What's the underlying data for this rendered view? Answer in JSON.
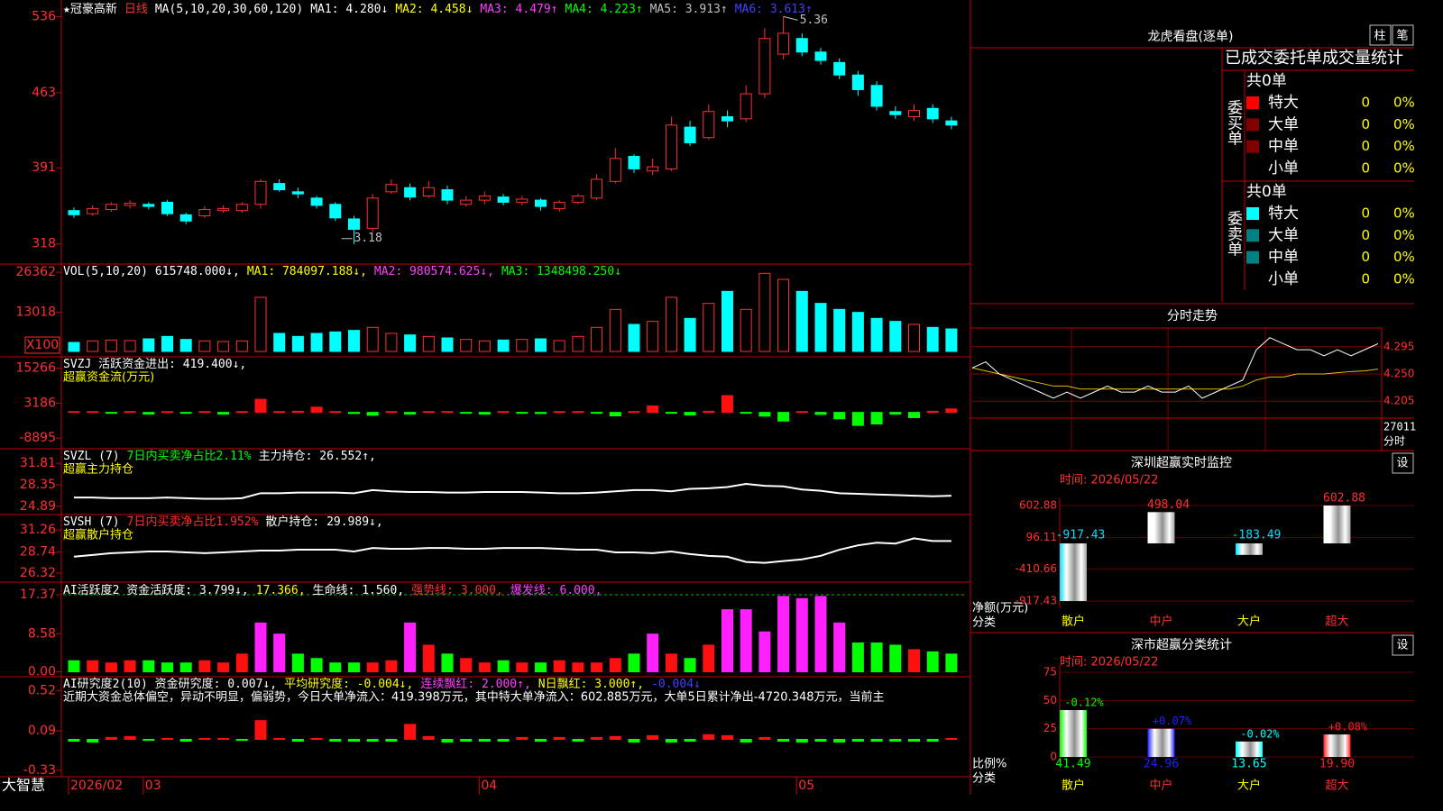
{
  "main": {
    "type": "candle",
    "ylim": [
      310,
      545
    ],
    "yticks": [
      318,
      391,
      463,
      536
    ],
    "legend": [
      {
        "text": "★冠豪高新",
        "color": "#ffffff"
      },
      {
        "text": "日线",
        "color": "#ff3030"
      },
      {
        "text": "MA(5,10,20,30,60,120)",
        "color": "#ffffff"
      },
      {
        "text": "MA1: 4.280↓",
        "color": "#ffffff"
      },
      {
        "text": "MA2: 4.458↓",
        "color": "#ffff00"
      },
      {
        "text": "MA3: 4.479↑",
        "color": "#ff40ff"
      },
      {
        "text": "MA4: 4.223↑",
        "color": "#00ff00"
      },
      {
        "text": "MA5: 3.913↑",
        "color": "#c0c0c0"
      },
      {
        "text": "MA6: 3.613↑",
        "color": "#4040ff"
      }
    ],
    "high_label": "5.36",
    "low_label": "3.18",
    "up_color": "#ff3030",
    "down_color": "#00ffff",
    "categories": [
      "2026/02",
      null,
      null,
      null,
      "03",
      null,
      null,
      null,
      null,
      null,
      null,
      null,
      null,
      null,
      null,
      null,
      null,
      null,
      null,
      null,
      null,
      null,
      "04",
      null,
      null,
      null,
      null,
      null,
      null,
      null,
      null,
      null,
      null,
      null,
      null,
      null,
      null,
      null,
      null,
      "05",
      null,
      null,
      null,
      null,
      null,
      null,
      null,
      null
    ],
    "candles": [
      [
        350,
        346,
        353,
        343
      ],
      [
        347,
        352,
        355,
        345
      ],
      [
        351,
        356,
        358,
        349
      ],
      [
        355,
        357,
        360,
        352
      ],
      [
        356,
        354,
        358,
        351
      ],
      [
        358,
        347,
        360,
        345
      ],
      [
        346,
        340,
        348,
        337
      ],
      [
        345,
        351,
        354,
        343
      ],
      [
        350,
        352,
        355,
        348
      ],
      [
        350,
        356,
        358,
        348
      ],
      [
        356,
        378,
        380,
        352
      ],
      [
        376,
        370,
        380,
        368
      ],
      [
        368,
        366,
        372,
        362
      ],
      [
        362,
        355,
        364,
        352
      ],
      [
        356,
        343,
        358,
        340
      ],
      [
        342,
        332,
        345,
        318
      ],
      [
        333,
        362,
        366,
        330
      ],
      [
        368,
        375,
        380,
        366
      ],
      [
        372,
        363,
        376,
        360
      ],
      [
        364,
        372,
        378,
        362
      ],
      [
        370,
        360,
        374,
        356
      ],
      [
        356,
        360,
        364,
        354
      ],
      [
        360,
        364,
        368,
        356
      ],
      [
        363,
        358,
        366,
        355
      ],
      [
        358,
        361,
        364,
        355
      ],
      [
        360,
        354,
        362,
        350
      ],
      [
        352,
        358,
        360,
        349
      ],
      [
        358,
        364,
        366,
        356
      ],
      [
        362,
        380,
        385,
        360
      ],
      [
        378,
        400,
        410,
        376
      ],
      [
        402,
        390,
        404,
        386
      ],
      [
        388,
        392,
        400,
        384
      ],
      [
        390,
        432,
        440,
        388
      ],
      [
        430,
        415,
        436,
        412
      ],
      [
        420,
        445,
        452,
        418
      ],
      [
        440,
        436,
        446,
        430
      ],
      [
        438,
        462,
        470,
        435
      ],
      [
        462,
        515,
        525,
        458
      ],
      [
        500,
        520,
        536,
        495
      ],
      [
        515,
        502,
        520,
        498
      ],
      [
        502,
        494,
        506,
        490
      ],
      [
        492,
        480,
        496,
        476
      ],
      [
        480,
        466,
        484,
        460
      ],
      [
        470,
        450,
        474,
        446
      ],
      [
        445,
        442,
        450,
        438
      ],
      [
        440,
        446,
        452,
        436
      ],
      [
        448,
        438,
        452,
        434
      ],
      [
        436,
        432,
        440,
        428
      ]
    ]
  },
  "volume": {
    "type": "bar",
    "ylim": [
      0,
      27000
    ],
    "yticks": [
      13018,
      26362
    ],
    "unit_label": "X100",
    "legend": [
      {
        "text": "VOL(5,10,20)",
        "color": "#ffffff"
      },
      {
        "text": "615748.000↓,",
        "color": "#ffffff"
      },
      {
        "text": "MA1: 784097.188↓,",
        "color": "#ffff00"
      },
      {
        "text": "MA2: 980574.625↓,",
        "color": "#ff40ff"
      },
      {
        "text": "MA3: 1348498.250↓",
        "color": "#00ff00"
      }
    ],
    "values": [
      3000,
      3500,
      3800,
      3600,
      4200,
      5000,
      4000,
      3500,
      3300,
      3500,
      18000,
      6000,
      5000,
      6000,
      6500,
      7000,
      8000,
      6000,
      5500,
      5000,
      4500,
      4000,
      3500,
      3800,
      4000,
      4200,
      3600,
      5000,
      8000,
      14000,
      9000,
      10000,
      18000,
      11000,
      16000,
      20000,
      14000,
      26000,
      24000,
      20000,
      16000,
      14000,
      13000,
      11000,
      10000,
      9000,
      8000,
      7500
    ]
  },
  "svzj": {
    "type": "bar0",
    "ylim": [
      -11000,
      17000
    ],
    "yticks": [
      15266,
      3186,
      -8895
    ],
    "legend": [
      {
        "text": "SVZJ  活跃资金进出: 419.400↓,",
        "color": "#ffffff"
      }
    ],
    "subtitle": "超赢资金流(万元)",
    "values": [
      300,
      300,
      -300,
      300,
      -600,
      300,
      -300,
      300,
      -600,
      300,
      4500,
      300,
      400,
      1800,
      300,
      -400,
      -1000,
      300,
      -600,
      300,
      300,
      -300,
      -600,
      300,
      -300,
      -400,
      300,
      300,
      -300,
      -1200,
      300,
      2200,
      -300,
      -900,
      400,
      5800,
      -300,
      -1300,
      -3000,
      300,
      -700,
      -2200,
      -4500,
      -4000,
      -600,
      -1800,
      400,
      1200
    ]
  },
  "svzl": {
    "type": "line",
    "ylim": [
      24,
      33
    ],
    "yticks": [
      31.81,
      28.35,
      24.89
    ],
    "legend": [
      {
        "text": "SVZL (7)",
        "color": "#ffffff"
      },
      {
        "text": "7日内买卖净占比2.11%",
        "color": "#00ff00"
      },
      {
        "text": "主力持仓: 26.552↑,",
        "color": "#ffffff"
      }
    ],
    "subtitle": "超赢主力持仓",
    "values": [
      26.3,
      26.3,
      26.2,
      26.2,
      26.2,
      26.3,
      26.2,
      26.1,
      26.1,
      26.2,
      27.0,
      27.0,
      27.1,
      27.1,
      27.1,
      27.0,
      27.5,
      27.3,
      27.2,
      27.2,
      27.1,
      27.1,
      27.2,
      27.2,
      27.2,
      27.1,
      27.0,
      27.0,
      27.1,
      27.3,
      27.5,
      27.5,
      27.3,
      27.7,
      27.8,
      28.0,
      28.5,
      28.2,
      28.1,
      27.6,
      27.4,
      27.0,
      26.9,
      26.8,
      26.7,
      26.6,
      26.5,
      26.6
    ]
  },
  "svsh": {
    "type": "line",
    "ylim": [
      25.5,
      32.3
    ],
    "yticks": [
      31.26,
      28.74,
      26.32
    ],
    "legend": [
      {
        "text": "SVSH (7)",
        "color": "#ffffff"
      },
      {
        "text": "7日内买卖净占比1.952%",
        "color": "#ff3030"
      },
      {
        "text": "散户持仓: 29.989↓,",
        "color": "#ffffff"
      }
    ],
    "subtitle": "超赢散户持仓",
    "values": [
      28.2,
      28.4,
      28.6,
      28.7,
      28.8,
      28.8,
      28.7,
      28.6,
      28.7,
      28.8,
      28.9,
      28.9,
      29.0,
      29.0,
      29.0,
      28.8,
      29.2,
      29.1,
      29.1,
      29.2,
      29.2,
      29.1,
      29.1,
      29.2,
      29.2,
      29.2,
      29.1,
      29.0,
      29.0,
      28.7,
      28.7,
      28.6,
      28.8,
      28.5,
      28.3,
      28.2,
      27.6,
      27.5,
      27.7,
      27.9,
      28.3,
      29.0,
      29.5,
      29.8,
      29.7,
      30.3,
      30.0,
      30.0
    ]
  },
  "ai": {
    "type": "bar0",
    "ylim": [
      -0.5,
      19
    ],
    "yticks": [
      17.37,
      8.58,
      {
        "value": 0,
        "label": "0.00"
      }
    ],
    "grid_dashed": true,
    "legend": [
      {
        "text": "AI活跃度2 资金活跃度: 3.799↓,",
        "color": "#ffffff"
      },
      {
        "text": "17.366,",
        "color": "#ffff00"
      },
      {
        "text": "生命线: 1.560,",
        "color": "#ffffff"
      },
      {
        "text": "强势线: 3.000,",
        "color": "#ff3030"
      },
      {
        "text": "爆发线: 6.000,",
        "color": "#ff40ff"
      }
    ],
    "values": [
      2.5,
      2.5,
      2,
      2.5,
      2.5,
      2,
      2,
      2.5,
      2,
      4,
      11,
      8.5,
      4,
      3,
      2,
      2,
      2,
      2.5,
      11,
      6,
      4,
      3,
      2,
      2.5,
      2,
      2,
      2.5,
      2,
      2,
      3,
      4,
      8.5,
      4,
      3,
      6,
      14,
      14,
      9,
      17,
      16.5,
      17,
      11,
      6.5,
      6.5,
      6,
      5,
      4.5,
      4
    ]
  },
  "research": {
    "type": "bar0",
    "ylim": [
      -0.36,
      0.6
    ],
    "yticks": [
      0.52,
      0.09,
      -0.33
    ],
    "legend": [
      {
        "text": "AI研究度2(10) 资金研究度: 0.007↓,",
        "color": "#ffffff"
      },
      {
        "text": "平均研究度: -0.004↓,",
        "color": "#ffff00"
      },
      {
        "text": "连续飘红: 2.000↑,",
        "color": "#ff40ff"
      },
      {
        "text": "N日飘红: 3.000↑,",
        "color": "#ffff00"
      },
      {
        "text": "-0.004↓",
        "color": "#4040ff"
      }
    ],
    "subtitle": "近期大资金总体偏空，异动不明显，偏弱势，今日大单净流入：419.398万元，其中特大单净流入：602.885万元，大单5日累计净出-4720.348万元，当前主",
    "values": [
      -0.02,
      -0.03,
      0.02,
      0.03,
      -0.01,
      0.01,
      -0.02,
      0.01,
      0.01,
      -0.01,
      0.2,
      0.01,
      -0.02,
      0.01,
      -0.02,
      -0.02,
      -0.02,
      -0.02,
      0.16,
      0.03,
      -0.03,
      -0.02,
      -0.02,
      -0.02,
      0.02,
      -0.02,
      0.02,
      -0.02,
      0.02,
      0.03,
      -0.03,
      0.04,
      -0.03,
      -0.02,
      0.05,
      0.04,
      -0.03,
      0.02,
      -0.02,
      -0.03,
      -0.02,
      -0.03,
      -0.02,
      -0.02,
      -0.02,
      -0.02,
      -0.02,
      0.01
    ]
  },
  "footer": {
    "brand": "大智慧"
  },
  "order_stats": {
    "title": "龙虎看盘(逐单)",
    "buttons": [
      "柱",
      "笔"
    ],
    "header": "已成交委托单成交量统计",
    "buy": {
      "label": "委买单",
      "total": "共0单",
      "rows": [
        {
          "name": "特大",
          "color": "#ff0000",
          "count": 0,
          "pct": "0%"
        },
        {
          "name": "大单",
          "color": "#800000",
          "count": 0,
          "pct": "0%"
        },
        {
          "name": "中单",
          "color": "#800000",
          "count": 0,
          "pct": "0%"
        },
        {
          "name": "小单",
          "count": 0,
          "pct": "0%"
        }
      ]
    },
    "sell": {
      "label": "委卖单",
      "total": "共0单",
      "rows": [
        {
          "name": "特大",
          "color": "#00ffff",
          "count": 0,
          "pct": "0%"
        },
        {
          "name": "大单",
          "color": "#008080",
          "count": 0,
          "pct": "0%"
        },
        {
          "name": "中单",
          "color": "#008080",
          "count": 0,
          "pct": "0%"
        },
        {
          "name": "小单",
          "count": 0,
          "pct": "0%"
        }
      ]
    }
  },
  "intraday": {
    "type": "line",
    "title": "分时走势",
    "ylim": [
      4.18,
      4.32
    ],
    "yticks": [
      4.295,
      {
        "value": 4.25,
        "label": "4.250"
      },
      4.205
    ],
    "volume_label": "27011",
    "volume_unit": "分时",
    "price": [
      4.26,
      4.27,
      4.25,
      4.24,
      4.23,
      4.22,
      4.21,
      4.22,
      4.21,
      4.22,
      4.23,
      4.22,
      4.22,
      4.23,
      4.22,
      4.22,
      4.23,
      4.21,
      4.22,
      4.23,
      4.24,
      4.29,
      4.31,
      4.3,
      4.29,
      4.29,
      4.28,
      4.29,
      4.28,
      4.29,
      4.3
    ],
    "average": [
      4.26,
      4.255,
      4.25,
      4.245,
      4.24,
      4.235,
      4.23,
      4.23,
      4.225,
      4.225,
      4.225,
      4.225,
      4.225,
      4.225,
      4.225,
      4.225,
      4.225,
      4.225,
      4.225,
      4.225,
      4.23,
      4.24,
      4.245,
      4.245,
      4.25,
      4.25,
      4.25,
      4.252,
      4.254,
      4.255,
      4.258
    ]
  },
  "monitor": {
    "type": "bar",
    "title": "深圳超赢实时监控",
    "button": "设",
    "time": "时间: 2026/05/22",
    "y_label": "净额(万元)",
    "x_label": "分类",
    "categories": [
      "散户",
      "中户",
      "大户",
      "超大"
    ],
    "values": [
      -917.43,
      498.04,
      -183.49,
      602.88
    ],
    "ylim": [
      -917.43,
      602.88
    ],
    "yticks": [
      602.88,
      96.11,
      -410.66,
      -917.43
    ],
    "colors": [
      "#00e0ff",
      "#ffffff",
      "#00e0ff",
      "#ffffff"
    ]
  },
  "ratio": {
    "type": "bar",
    "title": "深市超赢分类统计",
    "button": "设",
    "time": "时间: 2026/05/22",
    "y_label": "比例%",
    "x_label": "分类",
    "categories": [
      "散户",
      "中户",
      "大户",
      "超大"
    ],
    "values": [
      41.49,
      24.96,
      13.65,
      19.9
    ],
    "value_labels": [
      "41.49",
      "24.96",
      "13.65",
      "19.90"
    ],
    "change_labels": [
      "-0.12%",
      "+0.07%",
      "-0.02%",
      "+0.08%"
    ],
    "ylim": [
      0,
      75
    ],
    "yticks": [
      75,
      50,
      25,
      0
    ],
    "colors": [
      "#00ff00",
      "#2020ff",
      "#00ffff",
      "#ff2020"
    ]
  }
}
